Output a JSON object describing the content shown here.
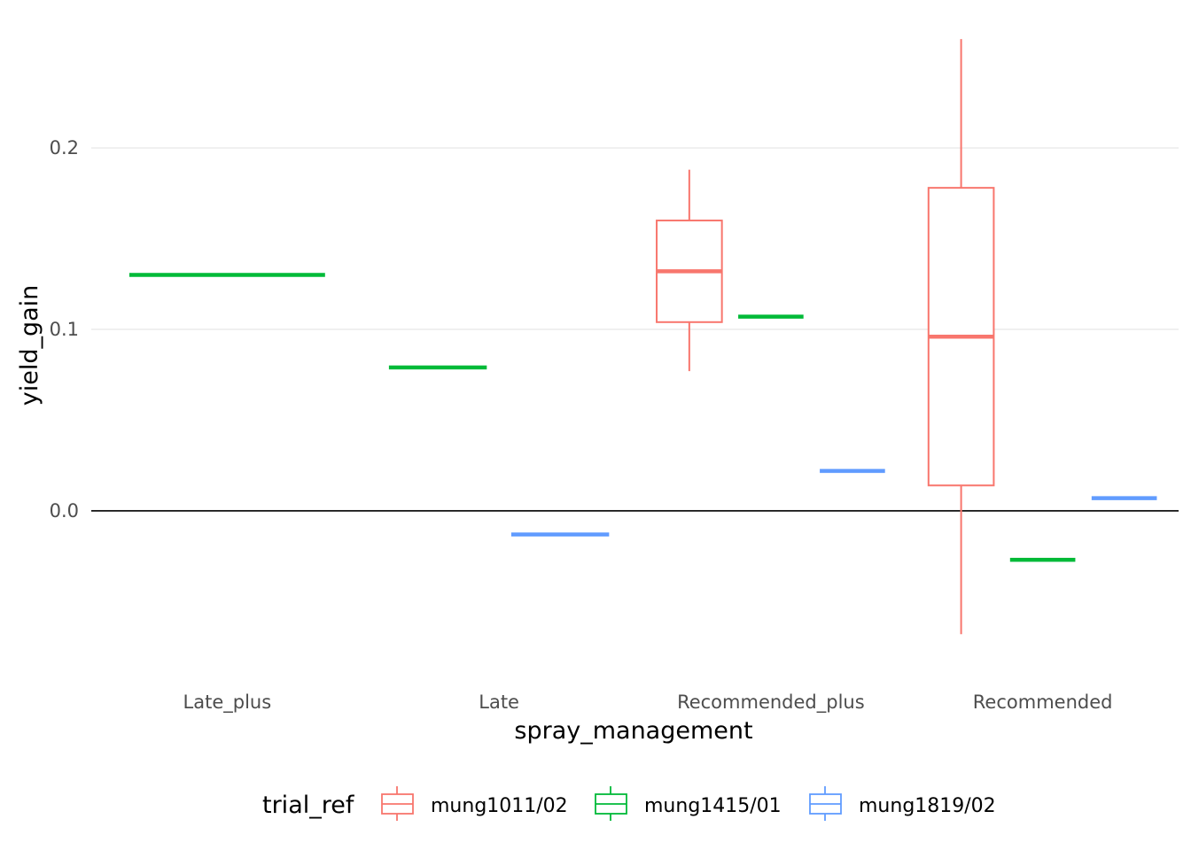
{
  "chart_data": {
    "type": "boxplot",
    "xlabel": "spray_management",
    "ylabel": "yield_gain",
    "ylim": [
      -0.082,
      0.262
    ],
    "yticks": [
      0.0,
      0.1,
      0.2
    ],
    "ytick_labels": [
      "0.0",
      "0.1",
      "0.2"
    ],
    "grid": "horizontal major",
    "reference_line_y": 0.0,
    "categories": [
      "Late_plus",
      "Late",
      "Recommended_plus",
      "Recommended"
    ],
    "legend": {
      "title": "trial_ref",
      "position": "bottom",
      "entries": [
        "mung1011/02",
        "mung1415/01",
        "mung1819/02"
      ]
    },
    "series": [
      {
        "name": "mung1011/02",
        "color": "#F8766D",
        "boxes": [
          {
            "category": "Recommended_plus",
            "min": 0.077,
            "q1": 0.104,
            "median": 0.132,
            "q3": 0.16,
            "max": 0.188
          },
          {
            "category": "Recommended",
            "min": -0.068,
            "q1": 0.014,
            "median": 0.096,
            "q3": 0.178,
            "max": 0.26
          }
        ]
      },
      {
        "name": "mung1415/01",
        "color": "#00BA38",
        "boxes": [
          {
            "category": "Late_plus",
            "min": 0.13,
            "q1": 0.13,
            "median": 0.13,
            "q3": 0.13,
            "max": 0.13
          },
          {
            "category": "Late",
            "min": 0.079,
            "q1": 0.079,
            "median": 0.079,
            "q3": 0.079,
            "max": 0.079
          },
          {
            "category": "Recommended_plus",
            "min": 0.107,
            "q1": 0.107,
            "median": 0.107,
            "q3": 0.107,
            "max": 0.107
          },
          {
            "category": "Recommended",
            "min": -0.027,
            "q1": -0.027,
            "median": -0.027,
            "q3": -0.027,
            "max": -0.027
          }
        ]
      },
      {
        "name": "mung1819/02",
        "color": "#619CFF",
        "boxes": [
          {
            "category": "Late",
            "min": -0.013,
            "q1": -0.013,
            "median": -0.013,
            "q3": -0.013,
            "max": -0.013
          },
          {
            "category": "Recommended_plus",
            "min": 0.022,
            "q1": 0.022,
            "median": 0.022,
            "q3": 0.022,
            "max": 0.022
          },
          {
            "category": "Recommended",
            "min": 0.007,
            "q1": 0.007,
            "median": 0.007,
            "q3": 0.007,
            "max": 0.007
          }
        ]
      }
    ]
  }
}
